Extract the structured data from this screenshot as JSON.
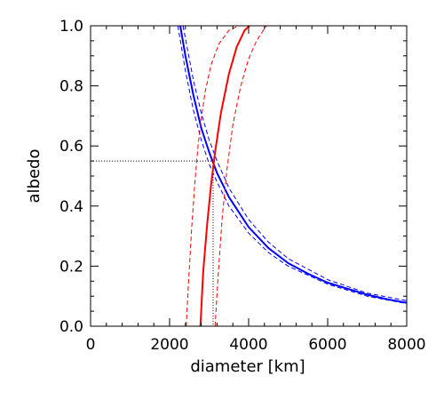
{
  "chart_data": {
    "type": "line",
    "title": "",
    "xlabel": "diameter [km]",
    "ylabel": "albedo",
    "xlim": [
      0,
      8000
    ],
    "ylim": [
      0.0,
      1.0
    ],
    "x_ticks": [
      0,
      2000,
      4000,
      6000,
      8000
    ],
    "x_tick_labels": [
      "0",
      "2000",
      "4000",
      "6000",
      "8000"
    ],
    "y_ticks": [
      0.0,
      0.2,
      0.4,
      0.6,
      0.8,
      1.0
    ],
    "y_tick_labels": [
      "0.0",
      "0.2",
      "0.4",
      "0.6",
      "0.8",
      "1.0"
    ],
    "grid": false,
    "series": [
      {
        "style": "solid",
        "color": "#0000ff",
        "x": [
          2270,
          2400,
          2600,
          2800,
          3000,
          3200,
          3500,
          4000,
          4500,
          5000,
          5500,
          6000,
          6500,
          7000,
          7500,
          8000
        ],
        "y": [
          1.0,
          0.9,
          0.77,
          0.66,
          0.58,
          0.51,
          0.43,
          0.33,
          0.26,
          0.21,
          0.175,
          0.145,
          0.125,
          0.105,
          0.09,
          0.078
        ]
      },
      {
        "style": "dashed",
        "color": "#0000ff",
        "x": [
          2210,
          2400,
          2600,
          2800,
          3000,
          3200,
          3500,
          4000,
          4500,
          5000,
          6000,
          7000,
          8000
        ],
        "y": [
          1.0,
          0.85,
          0.72,
          0.62,
          0.54,
          0.48,
          0.4,
          0.31,
          0.245,
          0.2,
          0.14,
          0.1,
          0.075
        ]
      },
      {
        "style": "dashed",
        "color": "#0000ff",
        "x": [
          2340,
          2600,
          2800,
          3000,
          3200,
          3500,
          4000,
          4500,
          5000,
          6000,
          7000,
          8000
        ],
        "y": [
          1.0,
          0.82,
          0.71,
          0.62,
          0.55,
          0.46,
          0.355,
          0.28,
          0.225,
          0.155,
          0.11,
          0.085
        ]
      },
      {
        "style": "solid",
        "color": "#ff0000",
        "x": [
          2780,
          2850,
          2950,
          3050,
          3150,
          3300,
          3500,
          3700,
          3900,
          4020
        ],
        "y": [
          0.0,
          0.18,
          0.34,
          0.47,
          0.58,
          0.71,
          0.84,
          0.93,
          0.985,
          1.0
        ]
      },
      {
        "style": "dashed",
        "color": "#ff0000",
        "x": [
          2420,
          2480,
          2560,
          2640,
          2720,
          2800,
          2900,
          3050,
          3250,
          3500,
          3750
        ],
        "y": [
          0.0,
          0.15,
          0.33,
          0.48,
          0.6,
          0.69,
          0.78,
          0.87,
          0.94,
          0.985,
          1.0
        ]
      },
      {
        "style": "dashed",
        "color": "#ff0000",
        "x": [
          3150,
          3230,
          3330,
          3450,
          3600,
          3800,
          4000,
          4200,
          4450
        ],
        "y": [
          0.0,
          0.17,
          0.36,
          0.52,
          0.67,
          0.8,
          0.89,
          0.95,
          1.0
        ]
      }
    ],
    "reference_lines": [
      {
        "style": "dotted",
        "color": "#000000",
        "x": [
          0,
          3100
        ],
        "y": [
          0.55,
          0.55
        ]
      },
      {
        "style": "dotted",
        "color": "#000000",
        "x": [
          3100,
          3100
        ],
        "y": [
          0.55,
          0.0
        ]
      }
    ]
  }
}
